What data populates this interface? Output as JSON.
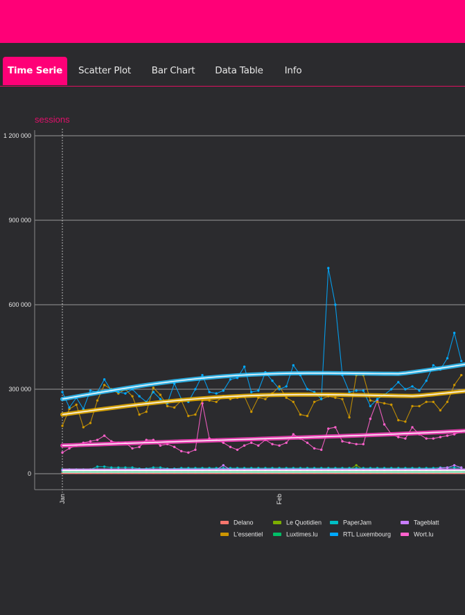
{
  "header": {
    "color": "#ff0077"
  },
  "tabs": [
    {
      "label": "Time Serie",
      "active": true
    },
    {
      "label": "Scatter Plot",
      "active": false
    },
    {
      "label": "Bar Chart",
      "active": false
    },
    {
      "label": "Data Table",
      "active": false
    },
    {
      "label": "Info",
      "active": false
    }
  ],
  "chart_data": {
    "type": "line",
    "title": "sessions",
    "ylabel": "sessions",
    "xlabel": "",
    "ylim": [
      -80000,
      1220000
    ],
    "yticks": [
      0,
      300000,
      600000,
      900000,
      1200000
    ],
    "ytick_labels": [
      "0",
      "300 000",
      "600 000",
      "900 000",
      "1 200 000"
    ],
    "xticks": [
      {
        "day": 0,
        "label": "Jan"
      },
      {
        "day": 31,
        "label": "Feb"
      }
    ],
    "x_unit": "day index from Jan 1",
    "marker_line_day": 0,
    "grid": true,
    "legend_position": "bottom-right",
    "legend": [
      "Delano",
      "L'essentiel",
      "Le Quotidien",
      "Luxtimes.lu",
      "PaperJam",
      "RTL Luxembourg",
      "Tageblatt",
      "Wort.lu"
    ],
    "series": [
      {
        "name": "Delano",
        "color": "#f8766d",
        "values": [
          3000,
          3000,
          3000,
          3000,
          3000,
          3000,
          3000,
          3000,
          3000,
          3000,
          3000,
          3000,
          3000,
          3000,
          3000,
          3000,
          3000,
          3000,
          3000,
          3000,
          3000,
          3000,
          3000,
          3000,
          3000,
          3000,
          3000,
          3000,
          3000,
          3000,
          3000,
          3000,
          3000,
          3000,
          3000,
          3000,
          3000,
          3000,
          3000,
          3000,
          3000,
          3000,
          3000,
          3000,
          3000,
          3000,
          3000,
          3000,
          3000,
          3000,
          3000,
          3000,
          3000,
          3000,
          3000,
          3000,
          3000,
          3000
        ]
      },
      {
        "name": "L'essentiel",
        "color": "#cd9600",
        "values": [
          170000,
          230000,
          245000,
          165000,
          180000,
          260000,
          315000,
          300000,
          285000,
          300000,
          275000,
          210000,
          220000,
          305000,
          280000,
          240000,
          235000,
          260000,
          205000,
          210000,
          260000,
          260000,
          255000,
          275000,
          265000,
          270000,
          275000,
          220000,
          270000,
          265000,
          285000,
          310000,
          270000,
          255000,
          210000,
          205000,
          255000,
          265000,
          275000,
          270000,
          265000,
          200000,
          350000,
          350000,
          260000,
          255000,
          250000,
          245000,
          190000,
          185000,
          240000,
          240000,
          255000,
          255000,
          225000,
          255000,
          315000,
          350000
        ]
      },
      {
        "name": "Le Quotidien",
        "color": "#7cae00",
        "values": [
          15000,
          15000,
          15000,
          15000,
          15000,
          15000,
          15000,
          15000,
          15000,
          15000,
          15000,
          15000,
          15000,
          15000,
          15000,
          15000,
          15000,
          15000,
          15000,
          15000,
          15000,
          15000,
          15000,
          15000,
          15000,
          15000,
          15000,
          15000,
          15000,
          15000,
          15000,
          15000,
          15000,
          15000,
          15000,
          15000,
          15000,
          15000,
          15000,
          15000,
          15000,
          15000,
          30000,
          15000,
          15000,
          15000,
          15000,
          15000,
          15000,
          15000,
          15000,
          15000,
          15000,
          15000,
          15000,
          15000,
          15000,
          15000
        ]
      },
      {
        "name": "Luxtimes.lu",
        "color": "#00be67",
        "values": [
          8000,
          8000,
          8000,
          8000,
          8000,
          8000,
          8000,
          8000,
          8000,
          8000,
          8000,
          8000,
          8000,
          8000,
          8000,
          8000,
          8000,
          8000,
          8000,
          8000,
          8000,
          8000,
          8000,
          8000,
          8000,
          8000,
          8000,
          8000,
          8000,
          8000,
          8000,
          8000,
          8000,
          8000,
          8000,
          8000,
          8000,
          8000,
          8000,
          8000,
          8000,
          8000,
          8000,
          8000,
          8000,
          8000,
          8000,
          8000,
          8000,
          8000,
          8000,
          8000,
          8000,
          8000,
          8000,
          8000,
          8000,
          8000
        ]
      },
      {
        "name": "PaperJam",
        "color": "#00bfc4",
        "values": [
          15000,
          15000,
          15000,
          15000,
          15000,
          25000,
          25000,
          22000,
          22000,
          22000,
          22000,
          18000,
          18000,
          22000,
          22000,
          18000,
          18000,
          20000,
          20000,
          20000,
          20000,
          20000,
          20000,
          20000,
          20000,
          20000,
          20000,
          20000,
          20000,
          20000,
          20000,
          20000,
          20000,
          20000,
          20000,
          20000,
          20000,
          20000,
          20000,
          20000,
          20000,
          20000,
          20000,
          20000,
          20000,
          20000,
          20000,
          20000,
          20000,
          20000,
          20000,
          20000,
          20000,
          20000,
          22000,
          22000,
          22000,
          22000
        ]
      },
      {
        "name": "RTL Luxembourg",
        "color": "#00a9ff",
        "values": [
          290000,
          235000,
          270000,
          230000,
          295000,
          290000,
          335000,
          295000,
          290000,
          285000,
          300000,
          275000,
          255000,
          290000,
          265000,
          250000,
          320000,
          265000,
          255000,
          300000,
          350000,
          290000,
          285000,
          295000,
          335000,
          340000,
          380000,
          290000,
          295000,
          360000,
          330000,
          300000,
          310000,
          385000,
          350000,
          300000,
          290000,
          265000,
          730000,
          600000,
          350000,
          290000,
          295000,
          295000,
          240000,
          265000,
          280000,
          300000,
          325000,
          300000,
          310000,
          295000,
          330000,
          385000,
          370000,
          410000,
          500000,
          400000
        ]
      },
      {
        "name": "Tageblatt",
        "color": "#c77cff",
        "values": [
          12000,
          12000,
          12000,
          12000,
          12000,
          12000,
          12000,
          12000,
          12000,
          12000,
          12000,
          12000,
          12000,
          12000,
          12000,
          12000,
          12000,
          12000,
          12000,
          12000,
          12000,
          14000,
          14000,
          30000,
          14000,
          14000,
          14000,
          14000,
          14000,
          14000,
          14000,
          14000,
          14000,
          14000,
          14000,
          14000,
          14000,
          14000,
          14000,
          14000,
          14000,
          14000,
          14000,
          14000,
          14000,
          14000,
          14000,
          14000,
          14000,
          14000,
          14000,
          14000,
          14000,
          14000,
          20000,
          22000,
          30000,
          22000
        ]
      },
      {
        "name": "Wort.lu",
        "color": "#ff61cc",
        "values": [
          75000,
          90000,
          100000,
          110000,
          115000,
          120000,
          135000,
          115000,
          110000,
          110000,
          90000,
          95000,
          120000,
          120000,
          100000,
          105000,
          95000,
          80000,
          75000,
          85000,
          250000,
          125000,
          120000,
          110000,
          95000,
          85000,
          100000,
          110000,
          100000,
          120000,
          105000,
          100000,
          110000,
          140000,
          125000,
          110000,
          90000,
          85000,
          160000,
          165000,
          115000,
          110000,
          105000,
          105000,
          195000,
          260000,
          175000,
          140000,
          130000,
          125000,
          165000,
          140000,
          125000,
          125000,
          130000,
          135000,
          140000,
          150000
        ]
      }
    ],
    "trend_series": [
      {
        "name": "RTL Luxembourg",
        "values_start": 265000,
        "values_end": 390000
      },
      {
        "name": "L'essentiel",
        "values_start": 215000,
        "values_end": 300000
      },
      {
        "name": "Wort.lu",
        "values_start": 100000,
        "values_end": 150000
      }
    ]
  }
}
